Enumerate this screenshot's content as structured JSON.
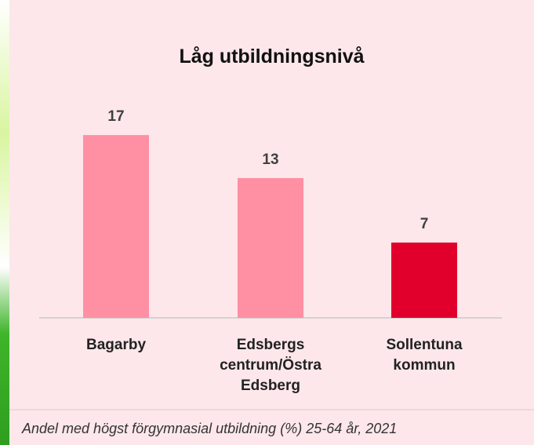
{
  "chart_data": {
    "type": "bar",
    "title": "Låg utbildningsnivå",
    "categories": [
      "Bagarby",
      "Edsbergs centrum/Östra Edsberg",
      "Sollentuna kommun"
    ],
    "values": [
      17,
      13,
      7
    ],
    "colors": [
      "#ff8fa3",
      "#ff8fa3",
      "#e0002b"
    ],
    "caption": "Andel med högst förgymnasial utbildning (%) 25-64 år, 2021"
  }
}
